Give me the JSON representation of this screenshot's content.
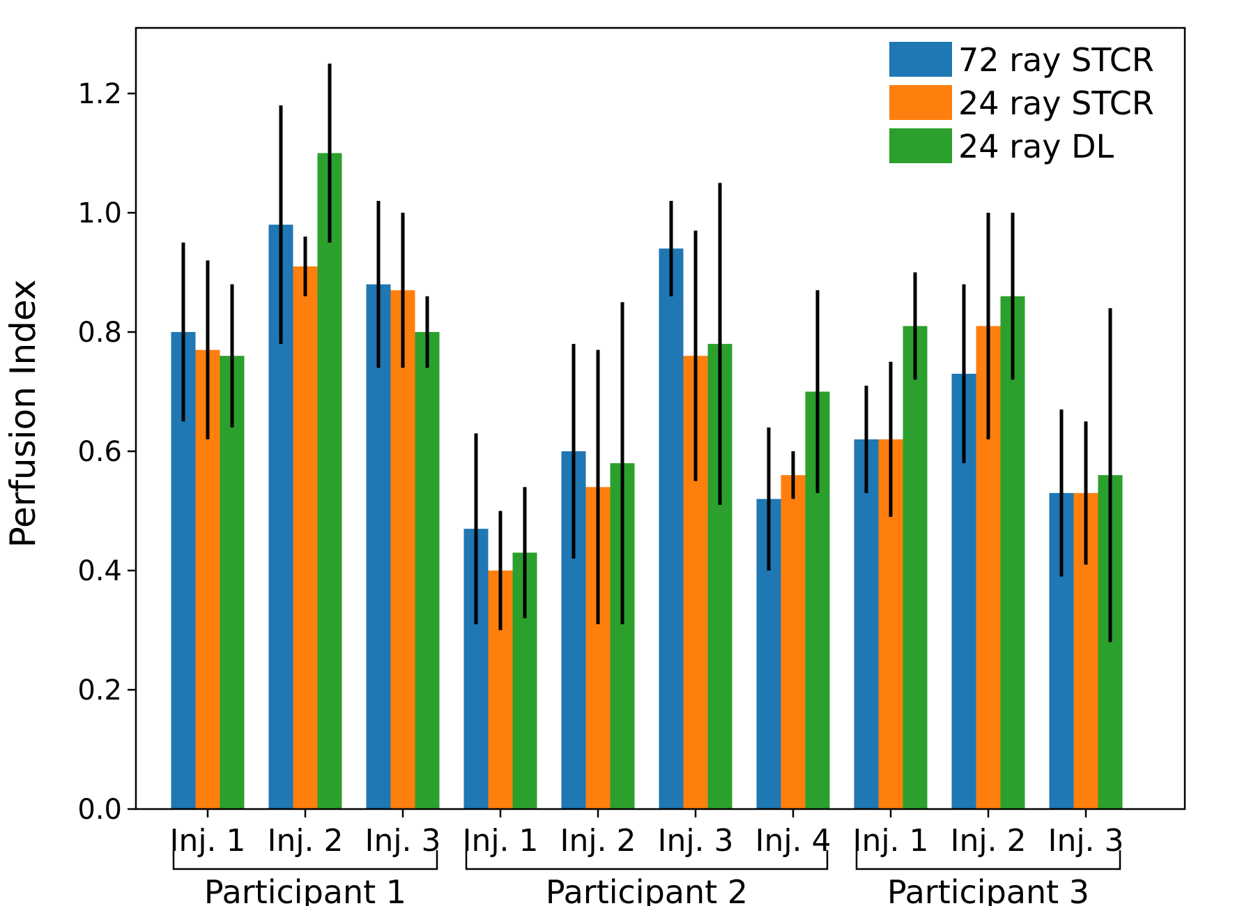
{
  "chart_data": {
    "type": "bar",
    "title": "",
    "xlabel": "",
    "ylabel": "Perfusion Index",
    "ylim": [
      0,
      1.31
    ],
    "yticks": [
      "0.0",
      "0.2",
      "0.4",
      "0.6",
      "0.8",
      "1.0",
      "1.2"
    ],
    "categories": [
      "Inj. 1",
      "Inj. 2",
      "Inj. 3",
      "Inj. 1",
      "Inj. 2",
      "Inj. 3",
      "Inj. 4",
      "Inj. 1",
      "Inj. 2",
      "Inj. 3"
    ],
    "groups": [
      {
        "label": "Participant 1",
        "start": 0,
        "end": 2
      },
      {
        "label": "Participant 2",
        "start": 3,
        "end": 6
      },
      {
        "label": "Participant 3",
        "start": 7,
        "end": 9
      }
    ],
    "legend_position": "top-right",
    "series": [
      {
        "name": "72 ray STCR",
        "color": "#1f77b4",
        "values": [
          0.8,
          0.98,
          0.88,
          0.47,
          0.6,
          0.94,
          0.52,
          0.62,
          0.73,
          0.53
        ],
        "err_low": [
          0.65,
          0.78,
          0.74,
          0.31,
          0.42,
          0.86,
          0.4,
          0.53,
          0.58,
          0.39
        ],
        "err_high": [
          0.95,
          1.18,
          1.02,
          0.63,
          0.78,
          1.02,
          0.64,
          0.71,
          0.88,
          0.67
        ]
      },
      {
        "name": "24 ray STCR",
        "color": "#ff7f0e",
        "values": [
          0.77,
          0.91,
          0.87,
          0.4,
          0.54,
          0.76,
          0.56,
          0.62,
          0.81,
          0.53
        ],
        "err_low": [
          0.62,
          0.86,
          0.74,
          0.3,
          0.31,
          0.55,
          0.52,
          0.49,
          0.62,
          0.41
        ],
        "err_high": [
          0.92,
          0.96,
          1.0,
          0.5,
          0.77,
          0.97,
          0.6,
          0.75,
          1.0,
          0.65
        ]
      },
      {
        "name": "24 ray DL",
        "color": "#2ca02c",
        "values": [
          0.76,
          1.1,
          0.8,
          0.43,
          0.58,
          0.78,
          0.7,
          0.81,
          0.86,
          0.56
        ],
        "err_low": [
          0.64,
          0.95,
          0.74,
          0.32,
          0.31,
          0.51,
          0.53,
          0.72,
          0.72,
          0.28
        ],
        "err_high": [
          0.88,
          1.25,
          0.86,
          0.54,
          0.85,
          1.05,
          0.87,
          0.9,
          1.0,
          0.84
        ]
      }
    ]
  }
}
